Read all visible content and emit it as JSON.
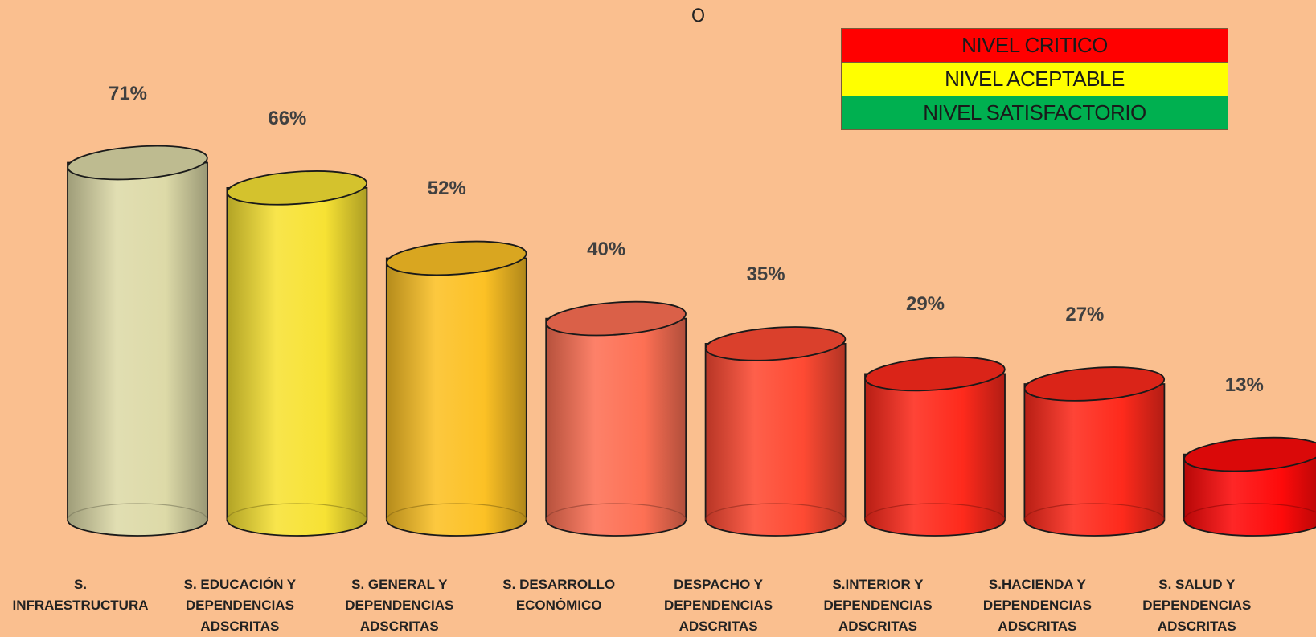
{
  "chart_data": {
    "type": "bar",
    "title": "O",
    "xlabel": "",
    "ylabel": "",
    "ylim": [
      0,
      80
    ],
    "grid": false,
    "legend_position": "top-right",
    "categories": [
      "S. INFRAESTRUCTURA",
      "S. EDUCACIÓN Y DEPENDENCIAS ADSCRITAS",
      "S. GENERAL Y DEPENDENCIAS ADSCRITAS",
      "S. DESARROLLO ECONÓMICO",
      "DESPACHO Y DEPENDENCIAS ADSCRITAS",
      "S.INTERIOR Y DEPENDENCIAS ADSCRITAS",
      "S.HACIENDA Y DEPENDENCIAS ADSCRITAS",
      "S. SALUD Y DEPENDENCIAS ADSCRITAS"
    ],
    "values": [
      71,
      66,
      52,
      40,
      35,
      29,
      27,
      13
    ],
    "value_labels": [
      "71%",
      "66%",
      "52%",
      "40%",
      "35%",
      "29%",
      "27%",
      "13%"
    ],
    "bar_colors": [
      "#DDDAA8",
      "#F7E234",
      "#FCC125",
      "#FD7054",
      "#FE4A33",
      "#FE2A1C",
      "#FE2A1C",
      "#FE0A0A"
    ],
    "legend": [
      {
        "label": "NIVEL CRITICO",
        "color": "#FF0000"
      },
      {
        "label": "NIVEL ACEPTABLE",
        "color": "#FFFF00"
      },
      {
        "label": "NIVEL SATISFACTORIO",
        "color": "#00B050"
      }
    ]
  }
}
